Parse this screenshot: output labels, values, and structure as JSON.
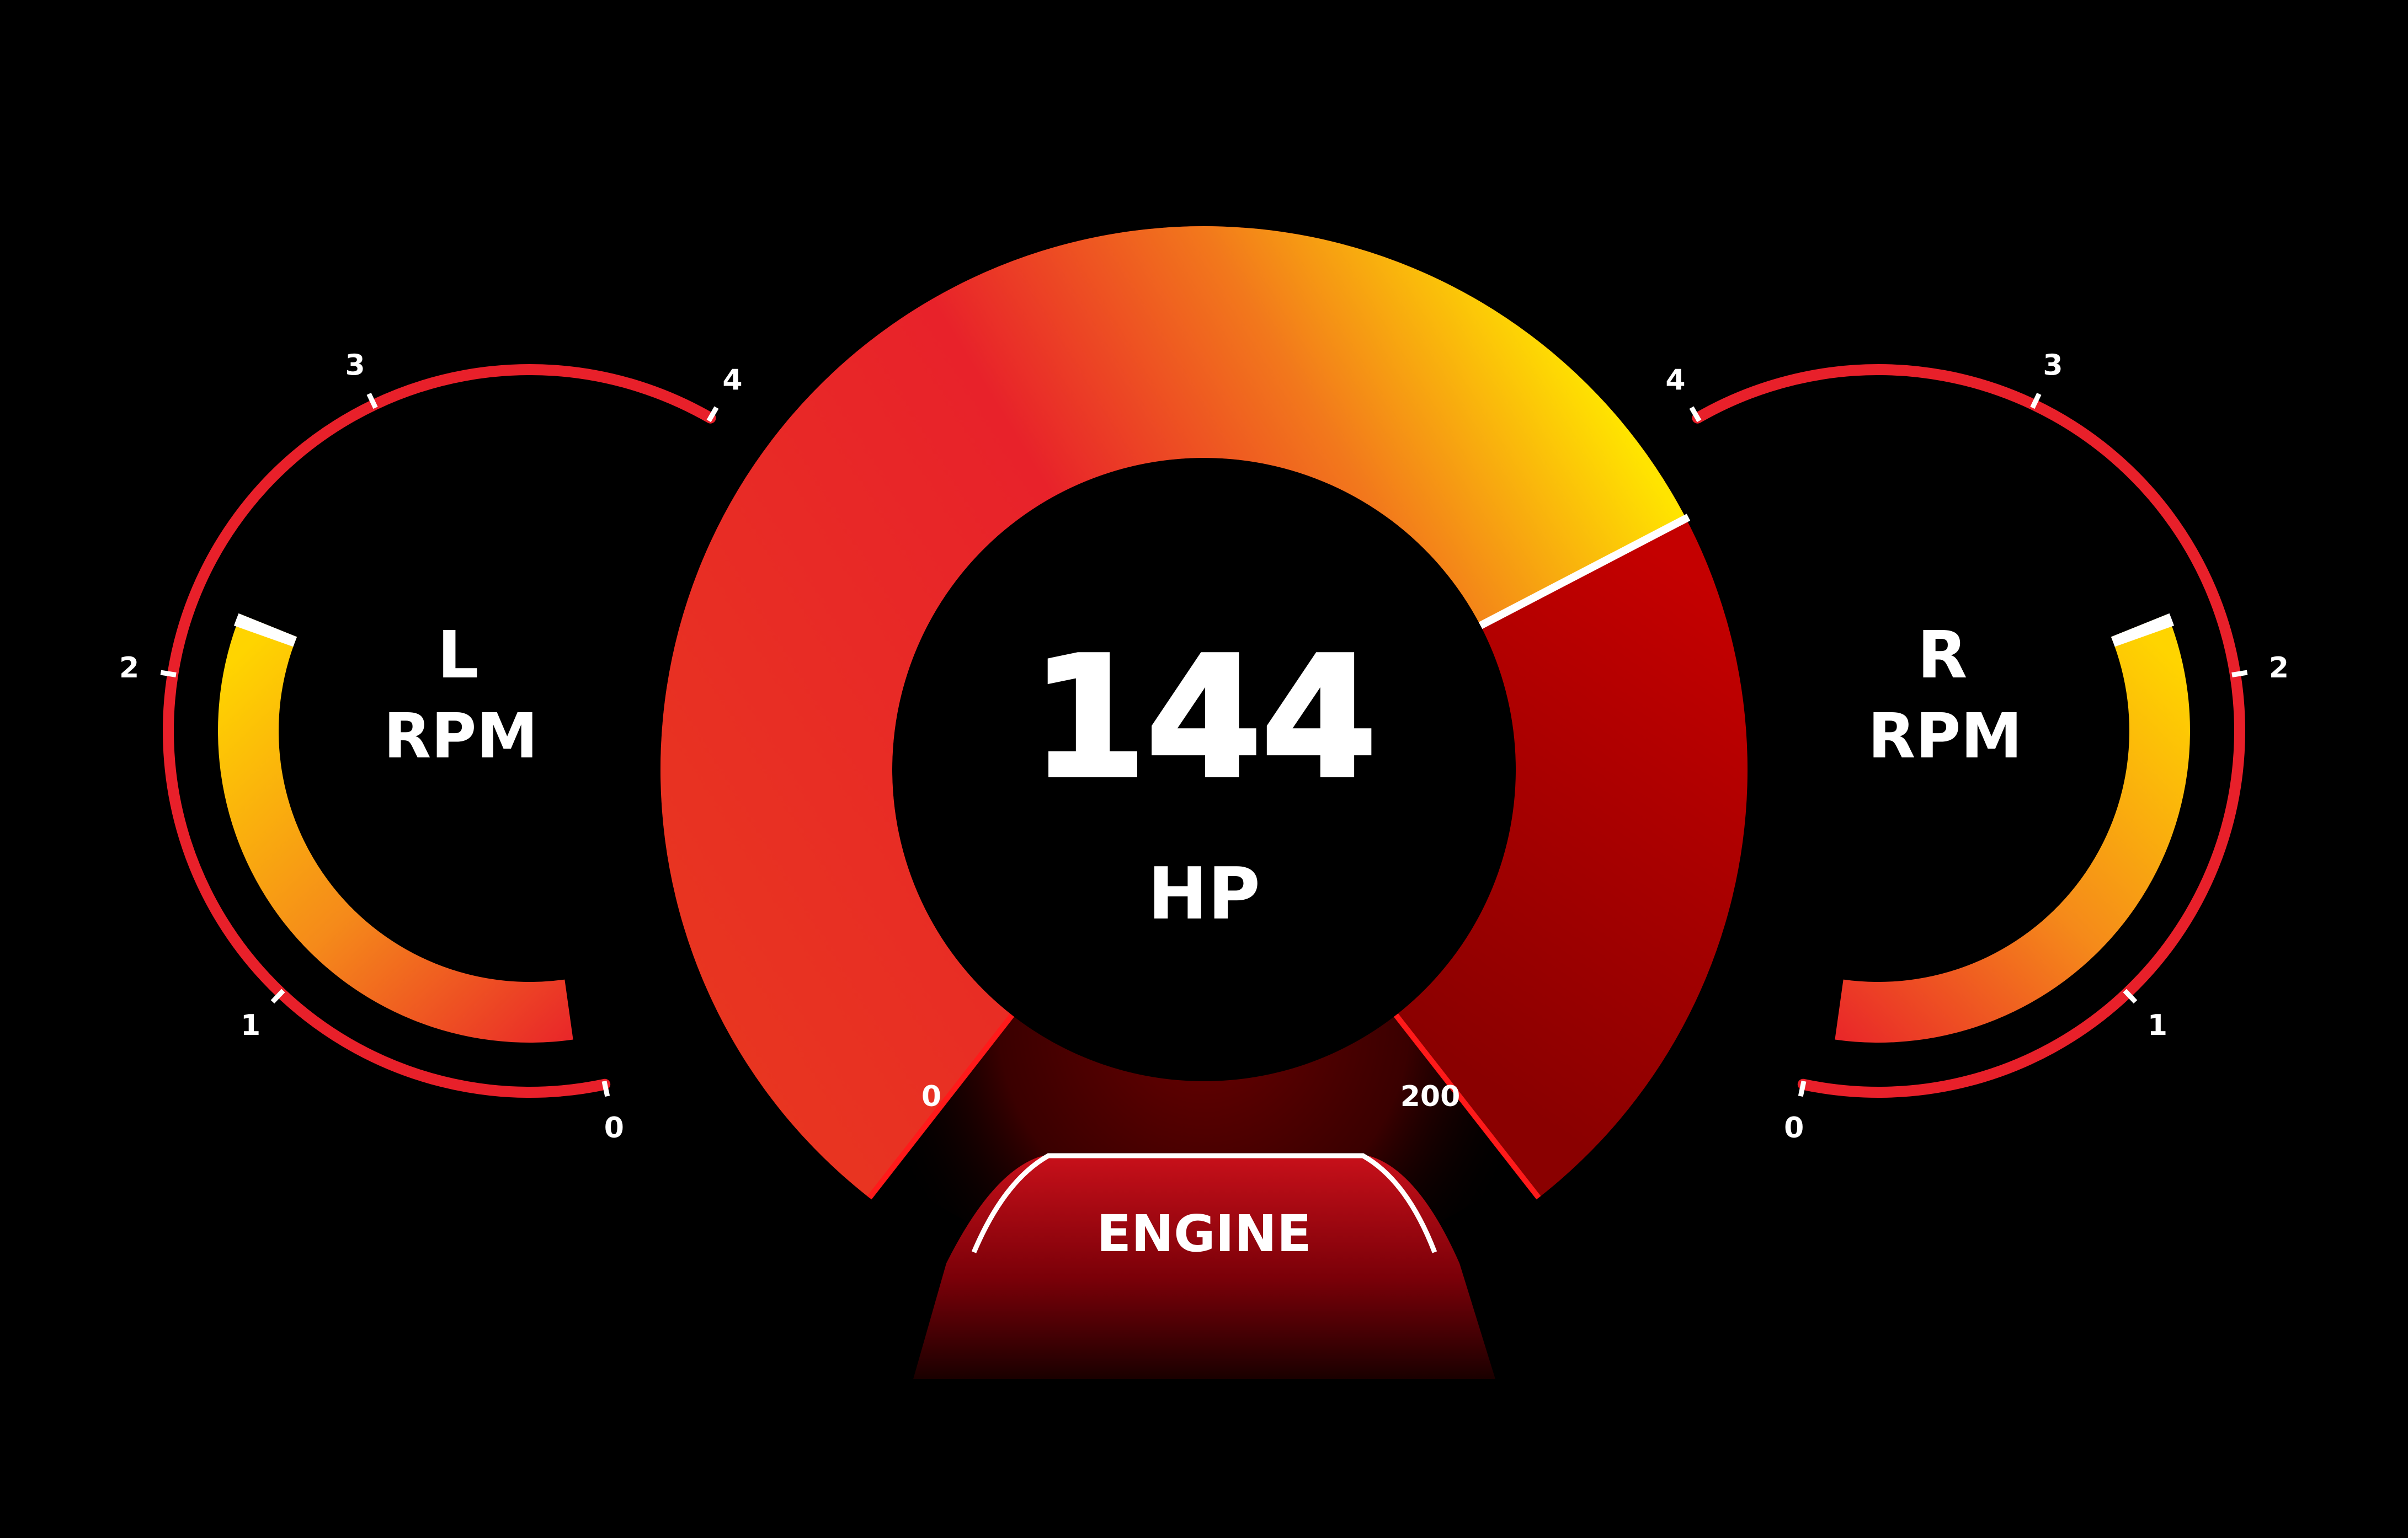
{
  "engine": {
    "value": "144",
    "unit": "HP",
    "scale_min": "0",
    "scale_max": "200",
    "fill_fraction": 0.72,
    "tab_label": "ENGINE"
  },
  "left_gauge": {
    "side": "L",
    "unit": "RPM",
    "ticks": [
      "0",
      "1",
      "2",
      "3",
      "4"
    ],
    "fill_fraction": 0.5
  },
  "right_gauge": {
    "side": "R",
    "unit": "RPM",
    "ticks": [
      "0",
      "1",
      "2",
      "3",
      "4"
    ],
    "fill_fraction": 0.5
  },
  "colors": {
    "red": "#e8202a",
    "dark_red": "#b00000",
    "orange": "#f58a1a",
    "yellow": "#ffe400",
    "white": "#ffffff",
    "background": "#000000"
  }
}
